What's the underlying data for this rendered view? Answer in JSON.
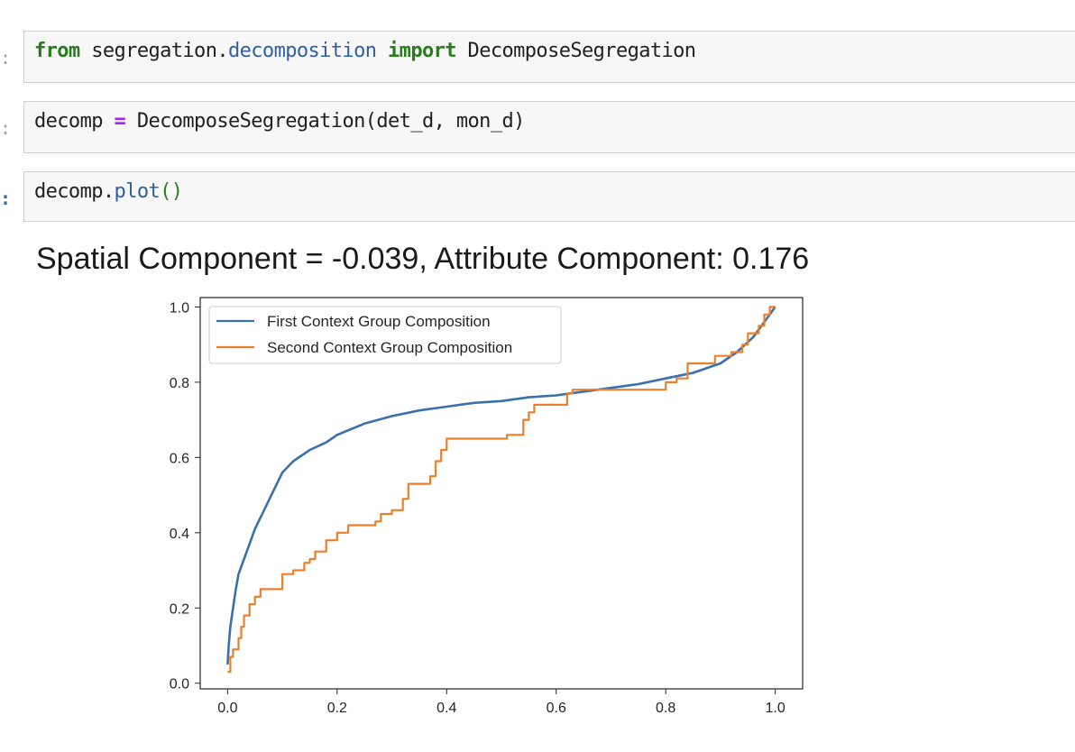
{
  "cells": [
    {
      "prompt": ":",
      "code": {
        "kw1": "from",
        "module_pre": " segregation.",
        "module_sub": "decomposition",
        "kw2": "import",
        "name": " DecomposeSegregation"
      }
    },
    {
      "prompt": ":",
      "code": {
        "lhs": "decomp ",
        "op": "=",
        "rhs": " DecomposeSegregation(det_d, mon_d)"
      }
    },
    {
      "prompt": ":",
      "code": {
        "obj": "decomp.",
        "fn": "plot",
        "parens": "()"
      }
    }
  ],
  "output": {
    "figure_title": "Spatial Component = -0.039, Attribute Component: 0.176"
  },
  "colors": {
    "series_1": "#3a70ac",
    "series_2": "#ea7f2c",
    "cell_background": "#f7f7f7",
    "cell_border": "#cfcfcf",
    "keyword": "#2a7d1f",
    "module": "#2f5fa6",
    "operator": "#aa22ff"
  },
  "chart_data": {
    "type": "line",
    "title": "Spatial Component = -0.039, Attribute Component: 0.176",
    "xlim": [
      -0.05,
      1.05
    ],
    "ylim": [
      -0.015,
      1.025
    ],
    "xticks": [
      "0.0",
      "0.2",
      "0.4",
      "0.6",
      "0.8",
      "1.0"
    ],
    "yticks": [
      "0.0",
      "0.2",
      "0.4",
      "0.6",
      "0.8",
      "1.0"
    ],
    "legend_position": "top-left",
    "grid": false,
    "series": [
      {
        "name": "First Context Group Composition",
        "step": false,
        "points": [
          [
            0.0,
            0.05
          ],
          [
            0.002,
            0.1
          ],
          [
            0.005,
            0.15
          ],
          [
            0.01,
            0.2
          ],
          [
            0.015,
            0.25
          ],
          [
            0.02,
            0.29
          ],
          [
            0.03,
            0.33
          ],
          [
            0.04,
            0.37
          ],
          [
            0.05,
            0.41
          ],
          [
            0.06,
            0.44
          ],
          [
            0.07,
            0.47
          ],
          [
            0.08,
            0.5
          ],
          [
            0.09,
            0.53
          ],
          [
            0.1,
            0.56
          ],
          [
            0.12,
            0.59
          ],
          [
            0.15,
            0.62
          ],
          [
            0.18,
            0.64
          ],
          [
            0.2,
            0.66
          ],
          [
            0.25,
            0.69
          ],
          [
            0.3,
            0.71
          ],
          [
            0.35,
            0.725
          ],
          [
            0.4,
            0.735
          ],
          [
            0.45,
            0.745
          ],
          [
            0.5,
            0.75
          ],
          [
            0.55,
            0.76
          ],
          [
            0.6,
            0.765
          ],
          [
            0.65,
            0.775
          ],
          [
            0.7,
            0.785
          ],
          [
            0.75,
            0.795
          ],
          [
            0.8,
            0.81
          ],
          [
            0.85,
            0.825
          ],
          [
            0.9,
            0.85
          ],
          [
            0.93,
            0.88
          ],
          [
            0.96,
            0.92
          ],
          [
            0.98,
            0.96
          ],
          [
            1.0,
            1.0
          ]
        ]
      },
      {
        "name": "Second Context Group Composition",
        "step": true,
        "points": [
          [
            0.0,
            0.03
          ],
          [
            0.005,
            0.07
          ],
          [
            0.01,
            0.09
          ],
          [
            0.02,
            0.12
          ],
          [
            0.025,
            0.15
          ],
          [
            0.03,
            0.18
          ],
          [
            0.04,
            0.21
          ],
          [
            0.05,
            0.23
          ],
          [
            0.06,
            0.25
          ],
          [
            0.1,
            0.29
          ],
          [
            0.12,
            0.3
          ],
          [
            0.14,
            0.32
          ],
          [
            0.15,
            0.33
          ],
          [
            0.16,
            0.35
          ],
          [
            0.18,
            0.38
          ],
          [
            0.2,
            0.4
          ],
          [
            0.22,
            0.42
          ],
          [
            0.27,
            0.43
          ],
          [
            0.28,
            0.45
          ],
          [
            0.3,
            0.46
          ],
          [
            0.32,
            0.49
          ],
          [
            0.33,
            0.53
          ],
          [
            0.37,
            0.55
          ],
          [
            0.38,
            0.59
          ],
          [
            0.39,
            0.62
          ],
          [
            0.4,
            0.65
          ],
          [
            0.51,
            0.66
          ],
          [
            0.54,
            0.7
          ],
          [
            0.55,
            0.72
          ],
          [
            0.56,
            0.74
          ],
          [
            0.62,
            0.77
          ],
          [
            0.63,
            0.78
          ],
          [
            0.8,
            0.8
          ],
          [
            0.82,
            0.81
          ],
          [
            0.84,
            0.85
          ],
          [
            0.89,
            0.87
          ],
          [
            0.92,
            0.88
          ],
          [
            0.94,
            0.9
          ],
          [
            0.95,
            0.93
          ],
          [
            0.97,
            0.95
          ],
          [
            0.98,
            0.98
          ],
          [
            0.99,
            1.0
          ],
          [
            1.0,
            1.0
          ]
        ]
      }
    ]
  }
}
